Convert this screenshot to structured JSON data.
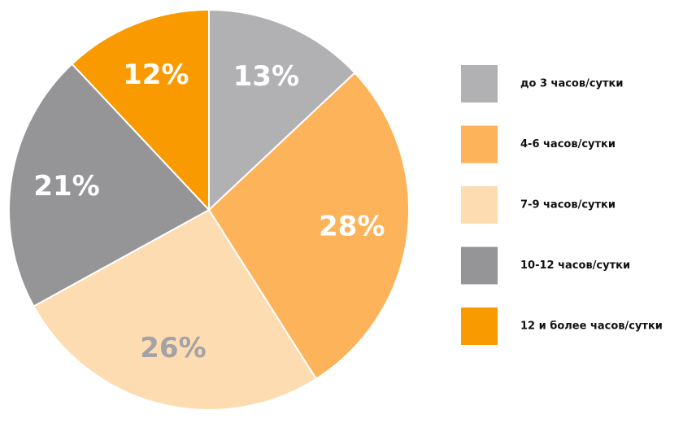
{
  "chart_data": {
    "type": "pie",
    "categories": [
      "до 3 часов/сутки",
      "4-6 часов/сутки",
      "7-9 часов/сутки",
      "10-12 часов/сутки",
      "12 и более часов/сутки"
    ],
    "values": [
      13,
      28,
      26,
      21,
      12
    ],
    "value_labels": [
      "13%",
      "28%",
      "26%",
      "21%",
      "12%"
    ],
    "colors": [
      "#b1b0b3",
      "#fdb35a",
      "#fddcb2",
      "#959497",
      "#f99a00"
    ],
    "legend": "right"
  }
}
